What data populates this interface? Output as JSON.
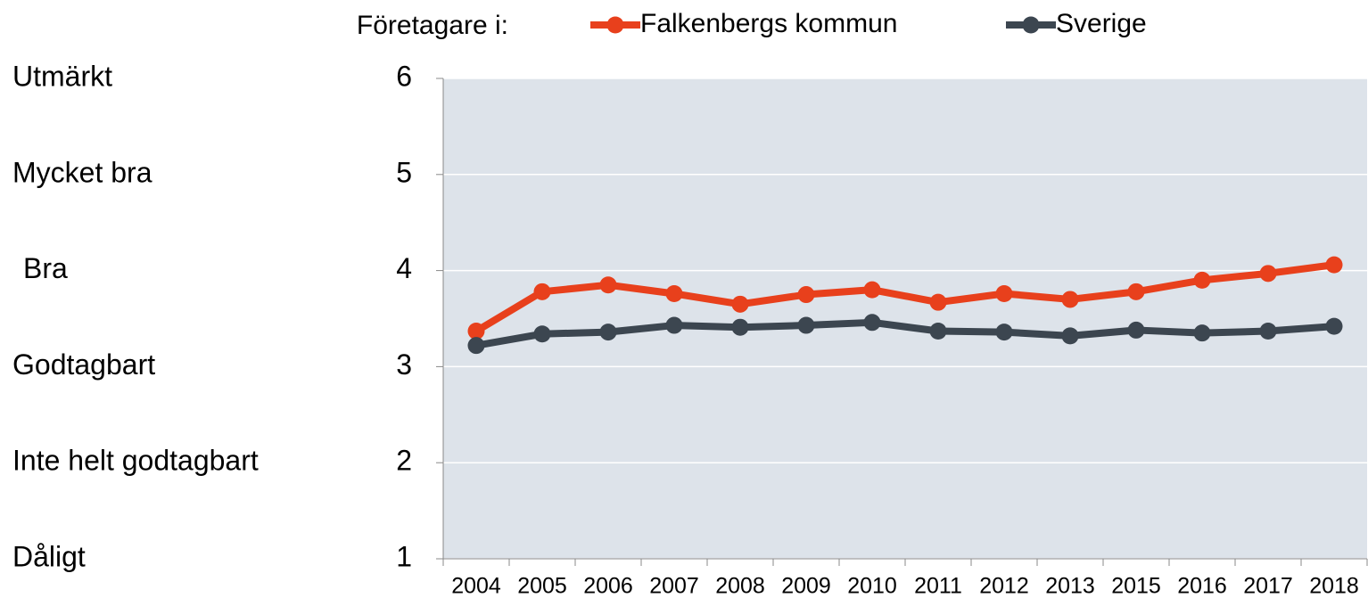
{
  "chart_data": {
    "type": "line",
    "legend_title": "Företagare i:",
    "level_labels": [
      "Dåligt",
      "Inte helt godtagbart",
      "Godtagbart",
      "Bra",
      "Mycket bra",
      "Utmärkt"
    ],
    "categories": [
      "2004",
      "2005",
      "2006",
      "2007",
      "2008",
      "2009",
      "2010",
      "2011",
      "2012",
      "2013",
      "2015",
      "2016",
      "2017",
      "2018"
    ],
    "series": [
      {
        "name": "Falkenbergs kommun",
        "color": "#e8401c",
        "values": [
          3.37,
          3.78,
          3.85,
          3.76,
          3.65,
          3.75,
          3.8,
          3.67,
          3.76,
          3.7,
          3.78,
          3.9,
          3.97,
          4.06
        ]
      },
      {
        "name": "Sverige",
        "color": "#3c4650",
        "values": [
          3.22,
          3.34,
          3.36,
          3.43,
          3.41,
          3.43,
          3.46,
          3.37,
          3.36,
          3.32,
          3.38,
          3.35,
          3.37,
          3.42
        ]
      }
    ],
    "ylim": [
      1,
      6
    ],
    "yticks": [
      1,
      2,
      3,
      4,
      5,
      6
    ],
    "grid": true,
    "plot_background": "#dde3ea"
  }
}
